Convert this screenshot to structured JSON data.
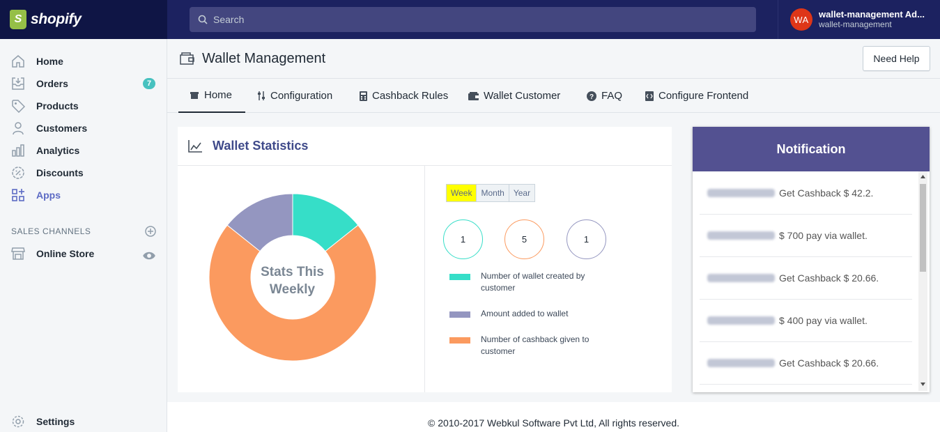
{
  "brand": {
    "name": "shopify",
    "logo_letter": "S",
    "colors": {
      "topbar": "#1c2260",
      "accent": "#5c6ac4",
      "badge": "#47c1bf",
      "avatar": "#de3618"
    }
  },
  "search": {
    "placeholder": "Search"
  },
  "user": {
    "initials": "WA",
    "name": "wallet-management Ad...",
    "shop": "wallet-management"
  },
  "sidebar": {
    "items": [
      {
        "label": "Home",
        "icon": "home-icon"
      },
      {
        "label": "Orders",
        "icon": "orders-icon",
        "badge": "7"
      },
      {
        "label": "Products",
        "icon": "tag-icon"
      },
      {
        "label": "Customers",
        "icon": "person-icon"
      },
      {
        "label": "Analytics",
        "icon": "bar-chart-icon"
      },
      {
        "label": "Discounts",
        "icon": "discount-icon"
      },
      {
        "label": "Apps",
        "icon": "apps-icon",
        "active": true
      }
    ],
    "channels_heading": "SALES CHANNELS",
    "online_store": "Online Store",
    "settings": "Settings"
  },
  "page": {
    "title": "Wallet Management",
    "help_button": "Need Help"
  },
  "tabs": [
    {
      "label": "Home",
      "icon": "store-icon",
      "active": true
    },
    {
      "label": "Configuration",
      "icon": "sliders-icon"
    },
    {
      "label": "Cashback Rules",
      "icon": "calculator-icon"
    },
    {
      "label": "Wallet Customer",
      "icon": "wallet-icon"
    },
    {
      "label": "FAQ",
      "icon": "question-icon"
    },
    {
      "label": "Configure Frontend",
      "icon": "code-icon"
    }
  ],
  "stats": {
    "title": "Wallet Statistics",
    "center_line1": "Stats This",
    "center_line2": "Weekly",
    "periods": [
      "Week",
      "Month",
      "Year"
    ],
    "selected_period": "Week",
    "counts": [
      {
        "value": "1",
        "color": "#36dec8"
      },
      {
        "value": "5",
        "color": "#fb9a5f"
      },
      {
        "value": "1",
        "color": "#9496c0"
      }
    ],
    "legend": [
      {
        "label": "Number of wallet created by customer",
        "color": "#36dec8"
      },
      {
        "label": "Amount added to wallet",
        "color": "#9496c0"
      },
      {
        "label": "Number of cashback given to customer",
        "color": "#fb9a5f"
      }
    ]
  },
  "notification": {
    "title": "Notification",
    "items": [
      {
        "text": "Get Cashback $ 42.2."
      },
      {
        "text": "$ 700 pay via wallet."
      },
      {
        "text": "Get Cashback $ 20.66."
      },
      {
        "text": "$ 400 pay via wallet."
      },
      {
        "text": "Get Cashback $ 20.66."
      }
    ]
  },
  "footer": {
    "text": "© 2010-2017 Webkul Software Pvt Ltd, All rights reserved."
  }
}
